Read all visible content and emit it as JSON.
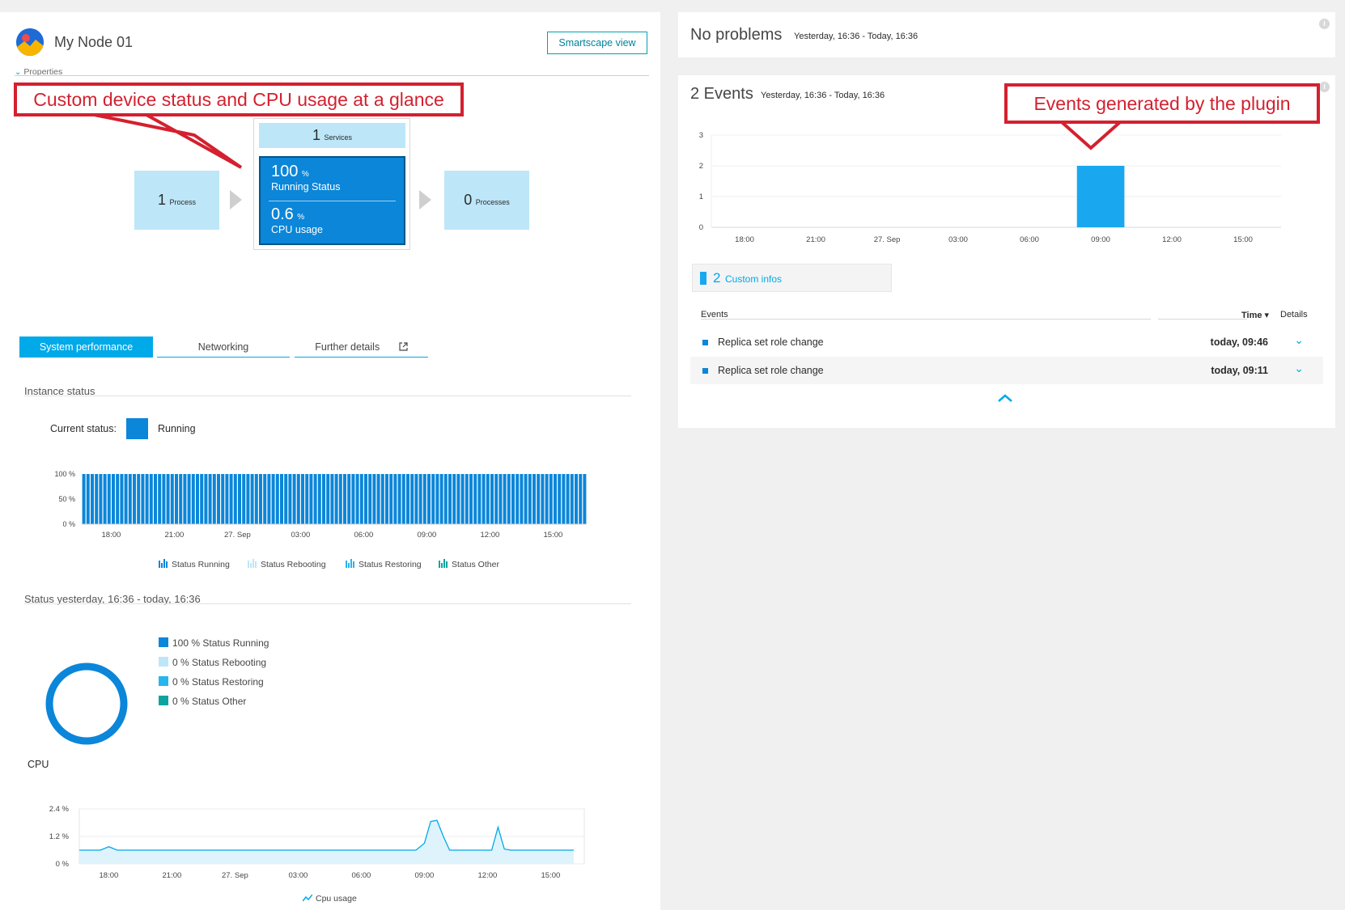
{
  "node": {
    "title": "My Node 01",
    "smartscape_button": "Smartscape view",
    "properties_label": "Properties"
  },
  "annotations": {
    "left": "Custom device status and CPU usage at a glance",
    "right": "Events generated by the plugin"
  },
  "flow": {
    "services": {
      "count": "1",
      "label": "Services"
    },
    "process": {
      "count": "1",
      "label": "Process"
    },
    "processes": {
      "count": "0",
      "label": "Processes"
    },
    "running_status": {
      "value": "100",
      "unit": "%",
      "label": "Running Status"
    },
    "cpu_usage": {
      "value": "0.6",
      "unit": "%",
      "label": "CPU usage"
    }
  },
  "tabs": [
    {
      "label": "System performance",
      "active": true
    },
    {
      "label": "Networking",
      "active": false
    },
    {
      "label": "Further details",
      "active": false
    }
  ],
  "instance_status": {
    "title": "Instance status",
    "current_label": "Current status:",
    "current_value": "Running",
    "current_color": "#0b86d9"
  },
  "status_period_title": "Status yesterday, 16:36 - today, 16:36",
  "donut_legend": [
    {
      "text": "100 % Status Running",
      "color": "#0b86d9"
    },
    {
      "text": "0 % Status Rebooting",
      "color": "#bde6f8"
    },
    {
      "text": "0 % Status Restoring",
      "color": "#27b5ee"
    },
    {
      "text": "0 % Status Other",
      "color": "#0fa3a0"
    }
  ],
  "cpu_title": "CPU",
  "problems": {
    "title": "No problems",
    "range": "Yesterday, 16:36 - Today, 16:36"
  },
  "events": {
    "title": "2 Events",
    "range": "Yesterday, 16:36 - Today, 16:36",
    "custom_infos_count": "2",
    "custom_infos_label": "Custom infos",
    "columns": {
      "events": "Events",
      "time": "Time ▾",
      "details": "Details"
    },
    "rows": [
      {
        "name": "Replica set role change",
        "time": "today, 09:46"
      },
      {
        "name": "Replica set role change",
        "time": "today, 09:11"
      }
    ]
  },
  "chart_data": [
    {
      "id": "instance-status",
      "type": "bar",
      "ylim": [
        0,
        100
      ],
      "y_ticks": [
        "100 %",
        "50 %",
        "0 %"
      ],
      "x_ticks": [
        "18:00",
        "21:00",
        "27. Sep",
        "03:00",
        "06:00",
        "09:00",
        "12:00",
        "15:00"
      ],
      "series": [
        {
          "name": "Status Running",
          "color": "#0b86d9",
          "value_all_buckets": 100,
          "bucket_count": 120
        },
        {
          "name": "Status Rebooting",
          "color": "#bde6f8",
          "value_all_buckets": 0
        },
        {
          "name": "Status Restoring",
          "color": "#27b5ee",
          "value_all_buckets": 0
        },
        {
          "name": "Status Other",
          "color": "#0fa3a0",
          "value_all_buckets": 0
        }
      ]
    },
    {
      "id": "status-donut",
      "type": "pie",
      "categories": [
        "Status Running",
        "Status Rebooting",
        "Status Restoring",
        "Status Other"
      ],
      "values": [
        100,
        0,
        0,
        0
      ]
    },
    {
      "id": "cpu",
      "type": "area",
      "ylim": [
        0,
        2.4
      ],
      "y_ticks": [
        "2.4 %",
        "1.2 %",
        "0 %"
      ],
      "x_ticks": [
        "18:00",
        "21:00",
        "27. Sep",
        "03:00",
        "06:00",
        "09:00",
        "12:00",
        "15:00"
      ],
      "series": [
        {
          "name": "Cpu usage",
          "color": "#00a9e8",
          "hours": [
            0,
            1,
            1.4,
            1.8,
            3,
            6,
            9,
            12,
            15,
            16,
            16.4,
            16.7,
            17,
            17.3,
            17.6,
            18,
            19,
            19.6,
            19.9,
            20.2,
            20.5,
            21,
            22,
            23.5
          ],
          "values": [
            0.6,
            0.6,
            0.75,
            0.6,
            0.6,
            0.6,
            0.6,
            0.6,
            0.6,
            0.6,
            0.9,
            1.85,
            1.9,
            1.2,
            0.6,
            0.6,
            0.6,
            0.6,
            1.6,
            0.65,
            0.6,
            0.6,
            0.6,
            0.6
          ]
        }
      ]
    },
    {
      "id": "events",
      "type": "bar",
      "ylim": [
        0,
        3
      ],
      "y_ticks": [
        "3",
        "2",
        "1",
        "0"
      ],
      "x_ticks": [
        "18:00",
        "21:00",
        "27. Sep",
        "03:00",
        "06:00",
        "09:00",
        "12:00",
        "15:00"
      ],
      "series": [
        {
          "name": "Custom infos",
          "color": "#19a8f0",
          "bucket_start": "08:00",
          "bucket_end": "10:00",
          "value": 2
        }
      ]
    }
  ]
}
